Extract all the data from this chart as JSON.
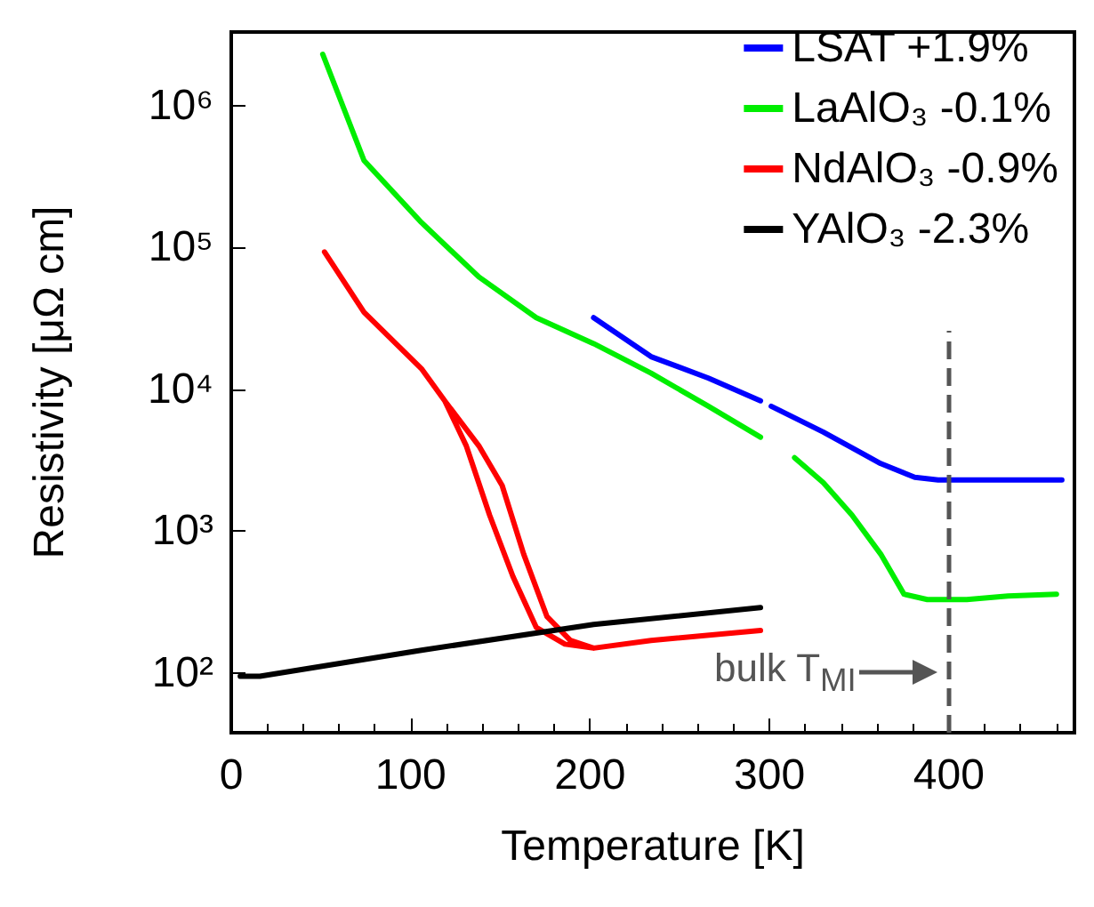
{
  "chart_data": {
    "type": "line",
    "xlabel": "Temperature [K]",
    "ylabel": "Resistivity [μΩ cm]",
    "log": "y",
    "xlim": [
      0,
      470
    ],
    "xticks": [
      0,
      100,
      200,
      300,
      400
    ],
    "ylim": [
      38,
      3300000
    ],
    "yticks": [
      {
        "value": 100,
        "label": "10²"
      },
      {
        "value": 1000,
        "label": "10³"
      },
      {
        "value": 10000,
        "label": "10⁴"
      },
      {
        "value": 100000,
        "label": "10⁵"
      },
      {
        "value": 1000000,
        "label": "10⁶"
      }
    ],
    "grid": false,
    "legend": "top right",
    "marker": "none",
    "line_style": "solid",
    "series": [
      {
        "name": "LSAT +1.9%",
        "color": "#0000ff",
        "x": [
          202,
          234,
          266,
          295,
          298,
          301,
          330,
          362,
          381,
          394,
          463
        ],
        "values": [
          32000,
          17000,
          12000,
          8300,
          null,
          7600,
          5000,
          3000,
          2400,
          2300,
          2300
        ]
      },
      {
        "name": "LaAlO₃ -0.1%",
        "color": "#00ee00",
        "x": [
          51,
          74,
          106,
          138,
          170,
          202,
          234,
          266,
          295,
          305,
          314,
          330,
          346,
          362,
          375,
          388,
          410,
          433,
          460
        ],
        "values": [
          2300000,
          410000,
          150000,
          62000,
          32000,
          21000,
          13000,
          7600,
          4600,
          null,
          3300,
          2200,
          1300,
          690,
          360,
          330,
          330,
          350,
          360
        ]
      },
      {
        "name": "NdAlO₃ -0.9%",
        "color": "#ff0000",
        "x": [
          295,
          234,
          202,
          189,
          176,
          163,
          151,
          138,
          119,
          106,
          74,
          52,
          74,
          106,
          119,
          131,
          144,
          157,
          170,
          186,
          202
        ],
        "values": [
          200,
          170,
          150,
          170,
          250,
          690,
          2100,
          4000,
          8300,
          14000,
          35000,
          93000,
          35000,
          14000,
          8300,
          4000,
          1300,
          480,
          210,
          160,
          150
        ]
      },
      {
        "name": "YAlO₃ -2.3%",
        "color": "#000000",
        "x": [
          5,
          16,
          106,
          202,
          295
        ],
        "values": [
          95,
          95,
          145,
          220,
          290
        ]
      }
    ],
    "ref_lines": [
      {
        "axis": "x",
        "value": 400,
        "label": "bulk T$_{MI}$",
        "color": "#555555",
        "line_style": "dashed"
      }
    ]
  }
}
